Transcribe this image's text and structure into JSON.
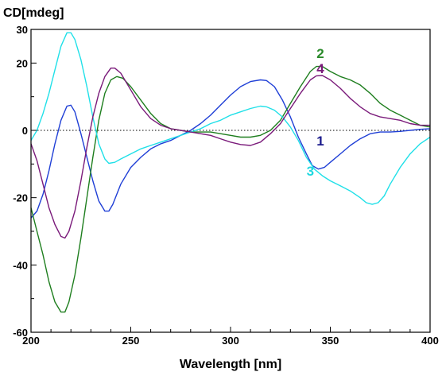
{
  "chart_data": {
    "type": "line",
    "title": "",
    "ylabel": "CD[mdeg]",
    "xlabel": "Wavelength [nm]",
    "xlim": [
      200,
      400
    ],
    "ylim": [
      -60,
      30
    ],
    "x_ticks": [
      "200",
      "250",
      "300",
      "350",
      "400"
    ],
    "y_ticks": [
      "30",
      "20",
      "0",
      "-20",
      "-40",
      "-60"
    ],
    "zero_line": "dotted",
    "series": [
      {
        "name": "1",
        "color": "#1f3fd6",
        "label_color": "#1a1a8c",
        "label_at": [
          345,
          -4.5
        ],
        "points": [
          [
            200,
            -26
          ],
          [
            203,
            -24
          ],
          [
            206,
            -19
          ],
          [
            209,
            -12
          ],
          [
            212,
            -4
          ],
          [
            215,
            3
          ],
          [
            218,
            7.2
          ],
          [
            220,
            7.5
          ],
          [
            222,
            5.5
          ],
          [
            225,
            -1
          ],
          [
            228,
            -8
          ],
          [
            231,
            -15
          ],
          [
            234,
            -21
          ],
          [
            237,
            -24
          ],
          [
            239,
            -24
          ],
          [
            241,
            -22
          ],
          [
            245,
            -16
          ],
          [
            250,
            -11
          ],
          [
            255,
            -8
          ],
          [
            260,
            -5.5
          ],
          [
            265,
            -4
          ],
          [
            270,
            -3
          ],
          [
            275,
            -1.5
          ],
          [
            280,
            0
          ],
          [
            285,
            2
          ],
          [
            290,
            4.5
          ],
          [
            295,
            7.5
          ],
          [
            300,
            10.5
          ],
          [
            305,
            13
          ],
          [
            310,
            14.5
          ],
          [
            315,
            15
          ],
          [
            318,
            14.8
          ],
          [
            322,
            13
          ],
          [
            326,
            9
          ],
          [
            330,
            4
          ],
          [
            334,
            -2
          ],
          [
            338,
            -7
          ],
          [
            341,
            -10.5
          ],
          [
            344,
            -11.5
          ],
          [
            347,
            -11
          ],
          [
            350,
            -9.5
          ],
          [
            355,
            -7
          ],
          [
            360,
            -4.5
          ],
          [
            365,
            -2.5
          ],
          [
            370,
            -1
          ],
          [
            375,
            -0.5
          ],
          [
            380,
            -0.5
          ],
          [
            385,
            -0.3
          ],
          [
            390,
            0
          ],
          [
            395,
            0.3
          ],
          [
            400,
            0.5
          ]
        ]
      },
      {
        "name": "2",
        "color": "#1e7e1e",
        "label_color": "#2a8a2a",
        "label_at": [
          345,
          21.5
        ],
        "points": [
          [
            200,
            -23
          ],
          [
            203,
            -30
          ],
          [
            206,
            -37
          ],
          [
            209,
            -45
          ],
          [
            212,
            -51
          ],
          [
            215,
            -54
          ],
          [
            217,
            -54
          ],
          [
            219,
            -51
          ],
          [
            222,
            -43
          ],
          [
            225,
            -32
          ],
          [
            228,
            -20
          ],
          [
            231,
            -8
          ],
          [
            234,
            3
          ],
          [
            237,
            11
          ],
          [
            240,
            15
          ],
          [
            243,
            16
          ],
          [
            246,
            15.5
          ],
          [
            250,
            13
          ],
          [
            255,
            9
          ],
          [
            260,
            5
          ],
          [
            265,
            2
          ],
          [
            270,
            0.5
          ],
          [
            275,
            0
          ],
          [
            280,
            -0.5
          ],
          [
            285,
            -0.5
          ],
          [
            290,
            -0.5
          ],
          [
            295,
            -1
          ],
          [
            300,
            -1.5
          ],
          [
            305,
            -2
          ],
          [
            310,
            -2
          ],
          [
            315,
            -1.5
          ],
          [
            320,
            0
          ],
          [
            325,
            3
          ],
          [
            330,
            8
          ],
          [
            335,
            13
          ],
          [
            340,
            17.5
          ],
          [
            343,
            19
          ],
          [
            346,
            19
          ],
          [
            350,
            17.5
          ],
          [
            355,
            16
          ],
          [
            360,
            15
          ],
          [
            365,
            13.5
          ],
          [
            370,
            11
          ],
          [
            375,
            8
          ],
          [
            380,
            6
          ],
          [
            385,
            4.5
          ],
          [
            390,
            3
          ],
          [
            395,
            1.5
          ],
          [
            400,
            1
          ]
        ]
      },
      {
        "name": "3",
        "color": "#20e0e8",
        "label_color": "#20d8e0",
        "label_at": [
          340,
          -13.5
        ],
        "points": [
          [
            200,
            -3
          ],
          [
            203,
            0
          ],
          [
            206,
            5
          ],
          [
            209,
            11
          ],
          [
            212,
            18
          ],
          [
            215,
            25
          ],
          [
            218,
            29
          ],
          [
            220,
            29
          ],
          [
            222,
            27
          ],
          [
            225,
            21
          ],
          [
            228,
            13
          ],
          [
            231,
            4
          ],
          [
            234,
            -4
          ],
          [
            237,
            -8.5
          ],
          [
            239,
            -9.8
          ],
          [
            242,
            -9.5
          ],
          [
            245,
            -8.5
          ],
          [
            250,
            -7
          ],
          [
            255,
            -5.5
          ],
          [
            260,
            -4.5
          ],
          [
            265,
            -3.5
          ],
          [
            270,
            -2.5
          ],
          [
            275,
            -1.5
          ],
          [
            280,
            -0.5
          ],
          [
            285,
            0.5
          ],
          [
            290,
            2
          ],
          [
            295,
            3
          ],
          [
            300,
            4.5
          ],
          [
            305,
            5.5
          ],
          [
            310,
            6.5
          ],
          [
            315,
            7.2
          ],
          [
            318,
            7
          ],
          [
            322,
            6
          ],
          [
            326,
            4
          ],
          [
            330,
            1
          ],
          [
            334,
            -3
          ],
          [
            338,
            -8
          ],
          [
            342,
            -11.5
          ],
          [
            346,
            -13.5
          ],
          [
            350,
            -15
          ],
          [
            355,
            -16.5
          ],
          [
            360,
            -18
          ],
          [
            365,
            -20
          ],
          [
            368,
            -21.5
          ],
          [
            371,
            -22
          ],
          [
            374,
            -21.5
          ],
          [
            377,
            -19.5
          ],
          [
            380,
            -16
          ],
          [
            385,
            -11
          ],
          [
            390,
            -7
          ],
          [
            395,
            -4
          ],
          [
            400,
            -2
          ]
        ]
      },
      {
        "name": "4",
        "color": "#7a1a7a",
        "label_color": "#7a1a7a",
        "label_at": [
          345,
          17
        ],
        "points": [
          [
            200,
            -4
          ],
          [
            203,
            -9
          ],
          [
            206,
            -16
          ],
          [
            209,
            -23
          ],
          [
            212,
            -28
          ],
          [
            215,
            -31.5
          ],
          [
            217,
            -32
          ],
          [
            219,
            -30
          ],
          [
            222,
            -24
          ],
          [
            225,
            -15
          ],
          [
            228,
            -5
          ],
          [
            231,
            4
          ],
          [
            234,
            11
          ],
          [
            237,
            16
          ],
          [
            240,
            18.5
          ],
          [
            242,
            18.5
          ],
          [
            245,
            17
          ],
          [
            250,
            12
          ],
          [
            255,
            7
          ],
          [
            260,
            3.5
          ],
          [
            265,
            1.5
          ],
          [
            270,
            0.5
          ],
          [
            275,
            0
          ],
          [
            280,
            -0.5
          ],
          [
            285,
            -1
          ],
          [
            290,
            -1.5
          ],
          [
            295,
            -2.5
          ],
          [
            300,
            -3.5
          ],
          [
            305,
            -4.2
          ],
          [
            310,
            -4.5
          ],
          [
            315,
            -3.5
          ],
          [
            320,
            -1
          ],
          [
            325,
            2
          ],
          [
            330,
            6.5
          ],
          [
            335,
            11
          ],
          [
            340,
            15
          ],
          [
            343,
            16.2
          ],
          [
            346,
            16.3
          ],
          [
            350,
            15
          ],
          [
            355,
            12.5
          ],
          [
            360,
            9.5
          ],
          [
            365,
            7
          ],
          [
            370,
            5
          ],
          [
            375,
            4
          ],
          [
            380,
            3.5
          ],
          [
            385,
            3
          ],
          [
            390,
            2
          ],
          [
            395,
            1.5
          ],
          [
            400,
            1.5
          ]
        ]
      }
    ]
  }
}
